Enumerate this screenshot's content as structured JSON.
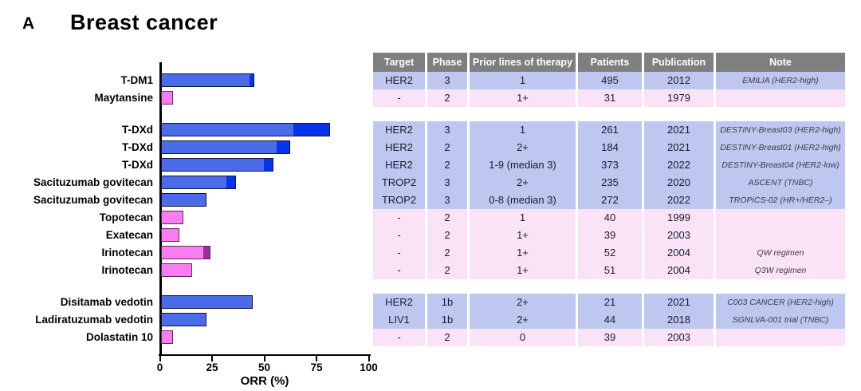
{
  "panel_label": "A",
  "title": "Breast cancer",
  "chart_data": {
    "type": "bar",
    "orientation": "horizontal",
    "title": "Breast cancer",
    "xlabel": "ORR (%)",
    "xlim": [
      0,
      100
    ],
    "xticks": [
      "0",
      "25",
      "50",
      "75",
      "100"
    ],
    "grid": false,
    "legend": false,
    "categories": [
      "T-DM1",
      "Maytansine",
      "T-DXd",
      "T-DXd",
      "T-DXd",
      "Sacituzumab govitecan",
      "Sacituzumab govitecan",
      "Topotecan",
      "Exatecan",
      "Irinotecan",
      "Irinotecan",
      "Disitamab vedotin",
      "Ladiratuzumab vedotin",
      "Dolastatin 10"
    ],
    "values_total_orr_pct": [
      44,
      5,
      80,
      61,
      53,
      35,
      21,
      10,
      8,
      23,
      14,
      43,
      21,
      5
    ],
    "series": [
      {
        "name": "bar main segment (ORR %)",
        "values": [
          42,
          5,
          63,
          55,
          49,
          31,
          21,
          10,
          8,
          20,
          14,
          43,
          21,
          5
        ]
      },
      {
        "name": "bar dark tip segment (ORR %)",
        "values": [
          2,
          0,
          17,
          6,
          4,
          4,
          0,
          0,
          0,
          3,
          0,
          0,
          0,
          0
        ]
      }
    ],
    "bar_color_scheme": [
      "blue",
      "pink",
      "blue",
      "blue",
      "blue",
      "blue",
      "blue",
      "pink",
      "pink",
      "pink",
      "pink",
      "blue",
      "blue",
      "pink"
    ]
  },
  "table": {
    "headers": [
      "Target",
      "Phase",
      "Prior lines of therapy",
      "Patients",
      "Publication",
      "Note"
    ]
  },
  "groups": [
    {
      "rows": [
        {
          "drug": "T-DM1",
          "scheme": "blue",
          "segments": [
            42,
            2
          ],
          "target": "HER2",
          "phase": "3",
          "prior": "1",
          "patients": "495",
          "publication": "2012",
          "note": "EMILIA (HER2-high)"
        },
        {
          "drug": "Maytansine",
          "scheme": "pink",
          "segments": [
            5
          ],
          "target": "-",
          "phase": "2",
          "prior": "1+",
          "patients": "31",
          "publication": "1979",
          "note": ""
        }
      ]
    },
    {
      "rows": [
        {
          "drug": "T-DXd",
          "scheme": "blue",
          "segments": [
            63,
            17
          ],
          "target": "HER2",
          "phase": "3",
          "prior": "1",
          "patients": "261",
          "publication": "2021",
          "note": "DESTINY-Breast03 (HER2-high)"
        },
        {
          "drug": "T-DXd",
          "scheme": "blue",
          "segments": [
            55,
            6
          ],
          "target": "HER2",
          "phase": "2",
          "prior": "2+",
          "patients": "184",
          "publication": "2021",
          "note": "DESTINY-Breast01 (HER2-high)"
        },
        {
          "drug": "T-DXd",
          "scheme": "blue",
          "segments": [
            49,
            4
          ],
          "target": "HER2",
          "phase": "2",
          "prior": "1-9 (median 3)",
          "patients": "373",
          "publication": "2022",
          "note": "DESTINY-Breast04 (HER2-low)"
        },
        {
          "drug": "Sacituzumab govitecan",
          "scheme": "blue",
          "segments": [
            31,
            4
          ],
          "target": "TROP2",
          "phase": "3",
          "prior": "2+",
          "patients": "235",
          "publication": "2020",
          "note": "ASCENT (TNBC)"
        },
        {
          "drug": "Sacituzumab govitecan",
          "scheme": "blue",
          "segments": [
            21
          ],
          "target": "TROP2",
          "phase": "3",
          "prior": "0-8 (median 3)",
          "patients": "272",
          "publication": "2022",
          "note": "TROPiCS-02 (HR+/HER2–)"
        },
        {
          "drug": "Topotecan",
          "scheme": "pink",
          "segments": [
            10
          ],
          "target": "-",
          "phase": "2",
          "prior": "1",
          "patients": "40",
          "publication": "1999",
          "note": ""
        },
        {
          "drug": "Exatecan",
          "scheme": "pink",
          "segments": [
            8
          ],
          "target": "-",
          "phase": "2",
          "prior": "1+",
          "patients": "39",
          "publication": "2003",
          "note": ""
        },
        {
          "drug": "Irinotecan",
          "scheme": "pink",
          "segments": [
            20,
            3
          ],
          "target": "-",
          "phase": "2",
          "prior": "1+",
          "patients": "52",
          "publication": "2004",
          "note": "QW regimen"
        },
        {
          "drug": "Irinotecan",
          "scheme": "pink",
          "segments": [
            14
          ],
          "target": "-",
          "phase": "2",
          "prior": "1+",
          "patients": "51",
          "publication": "2004",
          "note": "Q3W regimen"
        }
      ]
    },
    {
      "rows": [
        {
          "drug": "Disitamab vedotin",
          "scheme": "blue",
          "segments": [
            43
          ],
          "target": "HER2",
          "phase": "1b",
          "prior": "2+",
          "patients": "21",
          "publication": "2021",
          "note": "C003 CANCER (HER2-high)"
        },
        {
          "drug": "Ladiratuzumab vedotin",
          "scheme": "blue",
          "segments": [
            21
          ],
          "target": "LIV1",
          "phase": "1b",
          "prior": "2+",
          "patients": "44",
          "publication": "2018",
          "note": "SGNLVA-001 trial (TNBC)"
        },
        {
          "drug": "Dolastatin 10",
          "scheme": "pink",
          "segments": [
            5
          ],
          "target": "-",
          "phase": "2",
          "prior": "0",
          "patients": "39",
          "publication": "2003",
          "note": ""
        }
      ]
    }
  ],
  "colors": {
    "bar_blue": "#4a6ce8",
    "bar_blue_dark": "#0634e8",
    "bar_blue_border": "#15153a",
    "bar_pink": "#f87df0",
    "bar_pink_dark": "#9a2e9a",
    "bar_pink_border": "#5e2a60",
    "row_blue_bg": "#bdc7f0",
    "row_pink_bg": "#fae2f7",
    "header_bg": "#7f7f7f",
    "header_text": "#ffffff",
    "axis": "#000000"
  }
}
